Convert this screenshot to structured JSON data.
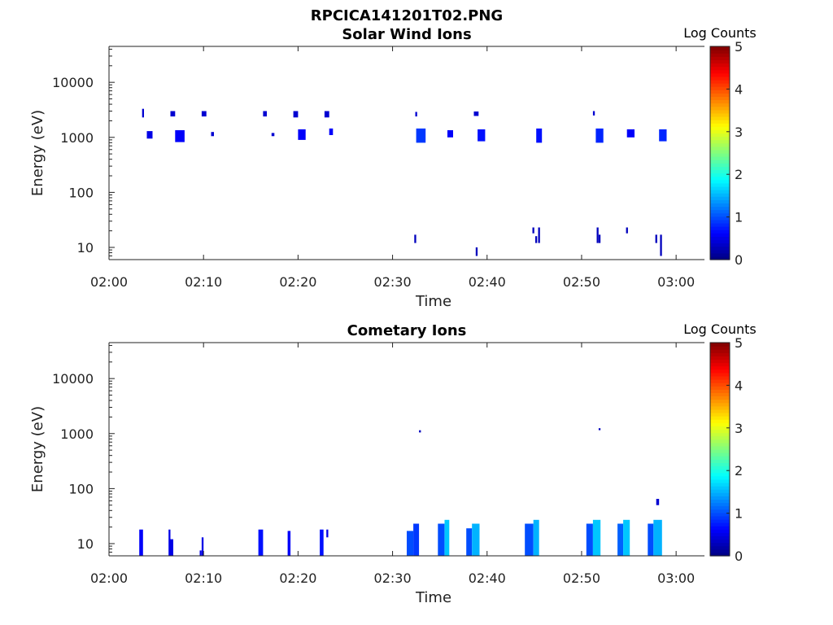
{
  "figure_title": "RPCICA141201T02.PNG",
  "chart_data": [
    {
      "type": "heatmap",
      "title": "Solar Wind Ions",
      "xlabel": "Time",
      "ylabel": "Energy (eV)",
      "yscale": "log",
      "xlim": [
        "02:00",
        "03:03"
      ],
      "ylim": [
        6,
        45000
      ],
      "x_ticks": [
        "02:00",
        "02:10",
        "02:20",
        "02:30",
        "02:40",
        "02:50",
        "03:00"
      ],
      "y_ticks": [
        "10",
        "100",
        "1000",
        "10000"
      ],
      "colorbar": {
        "label": "Log Counts",
        "range": [
          0,
          5
        ],
        "ticks": [
          "0",
          "1",
          "2",
          "3",
          "4",
          "5"
        ],
        "colormap": "jet"
      },
      "blobs": [
        {
          "t0": 3.5,
          "t1": 3.7,
          "e0": 2300,
          "e1": 3300,
          "v": 0.4
        },
        {
          "t0": 4.0,
          "t1": 4.6,
          "e0": 950,
          "e1": 1300,
          "v": 0.5
        },
        {
          "t0": 6.5,
          "t1": 7.0,
          "e0": 2400,
          "e1": 3000,
          "v": 0.4
        },
        {
          "t0": 7.0,
          "t1": 8.0,
          "e0": 820,
          "e1": 1350,
          "v": 0.6
        },
        {
          "t0": 9.8,
          "t1": 10.3,
          "e0": 2400,
          "e1": 3000,
          "v": 0.4
        },
        {
          "t0": 10.8,
          "t1": 11.1,
          "e0": 1050,
          "e1": 1250,
          "v": 0.4
        },
        {
          "t0": 16.3,
          "t1": 16.7,
          "e0": 2400,
          "e1": 3000,
          "v": 0.4
        },
        {
          "t0": 17.2,
          "t1": 17.5,
          "e0": 1050,
          "e1": 1200,
          "v": 0.4
        },
        {
          "t0": 19.5,
          "t1": 20.0,
          "e0": 2300,
          "e1": 3000,
          "v": 0.4
        },
        {
          "t0": 20.0,
          "t1": 20.8,
          "e0": 900,
          "e1": 1400,
          "v": 0.6
        },
        {
          "t0": 22.8,
          "t1": 23.3,
          "e0": 2300,
          "e1": 3000,
          "v": 0.4
        },
        {
          "t0": 23.3,
          "t1": 23.7,
          "e0": 1100,
          "e1": 1450,
          "v": 0.6
        },
        {
          "t0": 32.4,
          "t1": 32.6,
          "e0": 2400,
          "e1": 2900,
          "v": 0.4
        },
        {
          "t0": 32.5,
          "t1": 33.5,
          "e0": 800,
          "e1": 1450,
          "v": 0.9
        },
        {
          "t0": 35.8,
          "t1": 36.4,
          "e0": 1000,
          "e1": 1350,
          "v": 0.6
        },
        {
          "t0": 38.6,
          "t1": 39.1,
          "e0": 2450,
          "e1": 2950,
          "v": 0.4
        },
        {
          "t0": 39.0,
          "t1": 39.8,
          "e0": 850,
          "e1": 1400,
          "v": 0.7
        },
        {
          "t0": 45.2,
          "t1": 45.8,
          "e0": 800,
          "e1": 1450,
          "v": 0.7
        },
        {
          "t0": 51.2,
          "t1": 51.4,
          "e0": 2500,
          "e1": 3000,
          "v": 0.4
        },
        {
          "t0": 51.5,
          "t1": 52.3,
          "e0": 800,
          "e1": 1450,
          "v": 0.8
        },
        {
          "t0": 54.8,
          "t1": 55.6,
          "e0": 1000,
          "e1": 1400,
          "v": 0.6
        },
        {
          "t0": 58.2,
          "t1": 59.0,
          "e0": 850,
          "e1": 1400,
          "v": 0.8
        },
        {
          "t0": 32.3,
          "t1": 32.5,
          "e0": 12,
          "e1": 17,
          "v": 0.3
        },
        {
          "t0": 38.8,
          "t1": 39.0,
          "e0": 7,
          "e1": 10,
          "v": 0.3
        },
        {
          "t0": 44.8,
          "t1": 45.0,
          "e0": 18,
          "e1": 23,
          "v": 0.3
        },
        {
          "t0": 45.1,
          "t1": 45.3,
          "e0": 12,
          "e1": 16,
          "v": 0.3
        },
        {
          "t0": 45.4,
          "t1": 45.6,
          "e0": 12,
          "e1": 23,
          "v": 0.3
        },
        {
          "t0": 51.6,
          "t1": 51.8,
          "e0": 12,
          "e1": 23,
          "v": 0.3
        },
        {
          "t0": 51.8,
          "t1": 52.0,
          "e0": 12,
          "e1": 17,
          "v": 0.3
        },
        {
          "t0": 54.7,
          "t1": 54.9,
          "e0": 18,
          "e1": 23,
          "v": 0.3
        },
        {
          "t0": 57.8,
          "t1": 58.0,
          "e0": 12,
          "e1": 17,
          "v": 0.3
        },
        {
          "t0": 58.3,
          "t1": 58.5,
          "e0": 7,
          "e1": 17,
          "v": 0.3
        }
      ]
    },
    {
      "type": "heatmap",
      "title": "Cometary Ions",
      "xlabel": "Time",
      "ylabel": "Energy (eV)",
      "yscale": "log",
      "xlim": [
        "02:00",
        "03:03"
      ],
      "ylim": [
        6,
        45000
      ],
      "x_ticks": [
        "02:00",
        "02:10",
        "02:20",
        "02:30",
        "02:40",
        "02:50",
        "03:00"
      ],
      "y_ticks": [
        "10",
        "100",
        "1000",
        "10000"
      ],
      "colorbar": {
        "label": "Log Counts",
        "range": [
          0,
          5
        ],
        "ticks": [
          "0",
          "1",
          "2",
          "3",
          "4",
          "5"
        ],
        "colormap": "jet"
      },
      "blobs": [
        {
          "t0": 3.2,
          "t1": 3.6,
          "e0": 6,
          "e1": 18,
          "v": 0.6
        },
        {
          "t0": 6.3,
          "t1": 6.5,
          "e0": 6,
          "e1": 18,
          "v": 0.5
        },
        {
          "t0": 6.5,
          "t1": 6.8,
          "e0": 6,
          "e1": 12,
          "v": 0.5
        },
        {
          "t0": 9.6,
          "t1": 9.8,
          "e0": 6,
          "e1": 7.5,
          "v": 0.5
        },
        {
          "t0": 9.8,
          "t1": 10.0,
          "e0": 6,
          "e1": 13,
          "v": 0.5
        },
        {
          "t0": 15.8,
          "t1": 16.3,
          "e0": 6,
          "e1": 18,
          "v": 0.7
        },
        {
          "t0": 18.9,
          "t1": 19.2,
          "e0": 6,
          "e1": 17,
          "v": 0.6
        },
        {
          "t0": 22.3,
          "t1": 22.7,
          "e0": 6,
          "e1": 18,
          "v": 0.7
        },
        {
          "t0": 23.0,
          "t1": 23.2,
          "e0": 13,
          "e1": 18,
          "v": 0.5
        },
        {
          "t0": 31.5,
          "t1": 32.2,
          "e0": 6,
          "e1": 17,
          "v": 1.0
        },
        {
          "t0": 32.2,
          "t1": 32.8,
          "e0": 6,
          "e1": 23,
          "v": 0.9
        },
        {
          "t0": 34.8,
          "t1": 35.5,
          "e0": 6,
          "e1": 23,
          "v": 1.0
        },
        {
          "t0": 35.5,
          "t1": 36.0,
          "e0": 6,
          "e1": 27,
          "v": 1.6
        },
        {
          "t0": 37.8,
          "t1": 38.4,
          "e0": 6,
          "e1": 19,
          "v": 1.0
        },
        {
          "t0": 38.4,
          "t1": 39.2,
          "e0": 6,
          "e1": 23,
          "v": 1.5
        },
        {
          "t0": 44.0,
          "t1": 44.9,
          "e0": 6,
          "e1": 23,
          "v": 1.0
        },
        {
          "t0": 44.9,
          "t1": 45.5,
          "e0": 6,
          "e1": 27,
          "v": 1.5
        },
        {
          "t0": 50.5,
          "t1": 51.2,
          "e0": 6,
          "e1": 23,
          "v": 1.0
        },
        {
          "t0": 51.2,
          "t1": 52.0,
          "e0": 6,
          "e1": 27,
          "v": 1.6
        },
        {
          "t0": 53.8,
          "t1": 54.4,
          "e0": 6,
          "e1": 23,
          "v": 1.1
        },
        {
          "t0": 54.4,
          "t1": 55.1,
          "e0": 6,
          "e1": 27,
          "v": 1.6
        },
        {
          "t0": 57.0,
          "t1": 57.6,
          "e0": 6,
          "e1": 23,
          "v": 1.0
        },
        {
          "t0": 57.6,
          "t1": 58.5,
          "e0": 6,
          "e1": 27,
          "v": 1.5
        },
        {
          "t0": 57.9,
          "t1": 58.2,
          "e0": 50,
          "e1": 65,
          "v": 0.4
        },
        {
          "t0": 32.8,
          "t1": 33.0,
          "e0": 1050,
          "e1": 1150,
          "v": 0.3
        },
        {
          "t0": 51.8,
          "t1": 52.0,
          "e0": 1150,
          "e1": 1250,
          "v": 0.3
        }
      ]
    }
  ]
}
